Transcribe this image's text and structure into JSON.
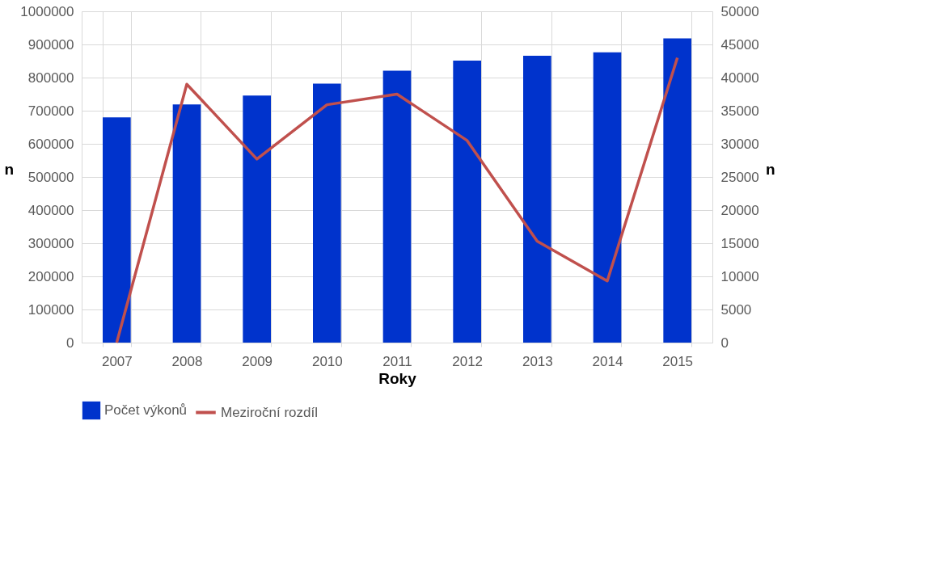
{
  "chart_data": {
    "type": "bar",
    "xlabel": "Roky",
    "ylabel": "n",
    "y2label": "n",
    "categories": [
      "2007",
      "2008",
      "2009",
      "2010",
      "2011",
      "2012",
      "2013",
      "2014",
      "2015"
    ],
    "series": [
      {
        "name": "Počet výkonů",
        "color": "#0033cc",
        "values": [
          680000,
          719000,
          746000,
          782000,
          821000,
          851000,
          866000,
          876000,
          918000
        ]
      },
      {
        "name": "Meziroční rozdíl",
        "type": "line",
        "axis": "y2",
        "color": "#c0504d",
        "values": [
          0,
          39000,
          27700,
          35900,
          37500,
          30500,
          15300,
          9300,
          43000
        ]
      }
    ],
    "ylim": [
      0,
      1000000
    ],
    "yticks": [
      0,
      100000,
      200000,
      300000,
      400000,
      500000,
      600000,
      700000,
      800000,
      900000,
      1000000
    ],
    "y2lim": [
      0,
      50000
    ],
    "y2ticks": [
      0,
      5000,
      10000,
      15000,
      20000,
      25000,
      30000,
      35000,
      40000,
      45000,
      50000
    ],
    "grid": true,
    "legend": "bottom",
    "marker": "none",
    "line_style": "solid"
  }
}
